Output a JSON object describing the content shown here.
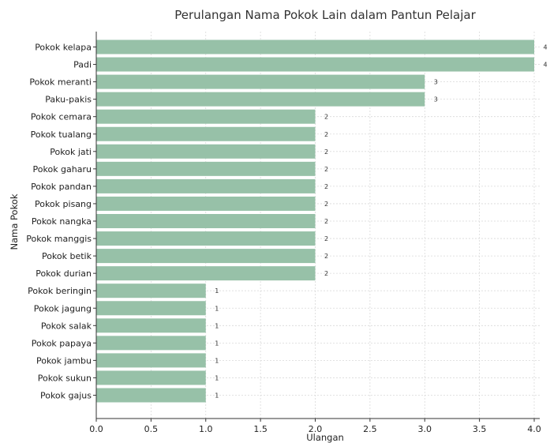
{
  "chart_data": {
    "type": "bar",
    "orientation": "horizontal",
    "title": "Perulangan Nama Pokok Lain dalam Pantun Pelajar",
    "xlabel": "Ulangan",
    "ylabel": "Nama Pokok",
    "xlim": [
      0,
      4.05
    ],
    "xticks": [
      "0.0",
      "0.5",
      "1.0",
      "1.5",
      "2.0",
      "2.5",
      "3.0",
      "3.5",
      "4.0"
    ],
    "grid": true,
    "bar_color": "#97c1a8",
    "categories": [
      "Pokok kelapa",
      "Padi",
      "Pokok meranti",
      "Paku-pakis",
      "Pokok cemara",
      "Pokok tualang",
      "Pokok jati",
      "Pokok gaharu",
      "Pokok pandan",
      "Pokok pisang",
      "Pokok nangka",
      "Pokok manggis",
      "Pokok betik",
      "Pokok durian",
      "Pokok beringin",
      "Pokok jagung",
      "Pokok salak",
      "Pokok papaya",
      "Pokok jambu",
      "Pokok sukun",
      "Pokok gajus"
    ],
    "values": [
      4,
      4,
      3,
      3,
      2,
      2,
      2,
      2,
      2,
      2,
      2,
      2,
      2,
      2,
      1,
      1,
      1,
      1,
      1,
      1,
      1
    ]
  }
}
